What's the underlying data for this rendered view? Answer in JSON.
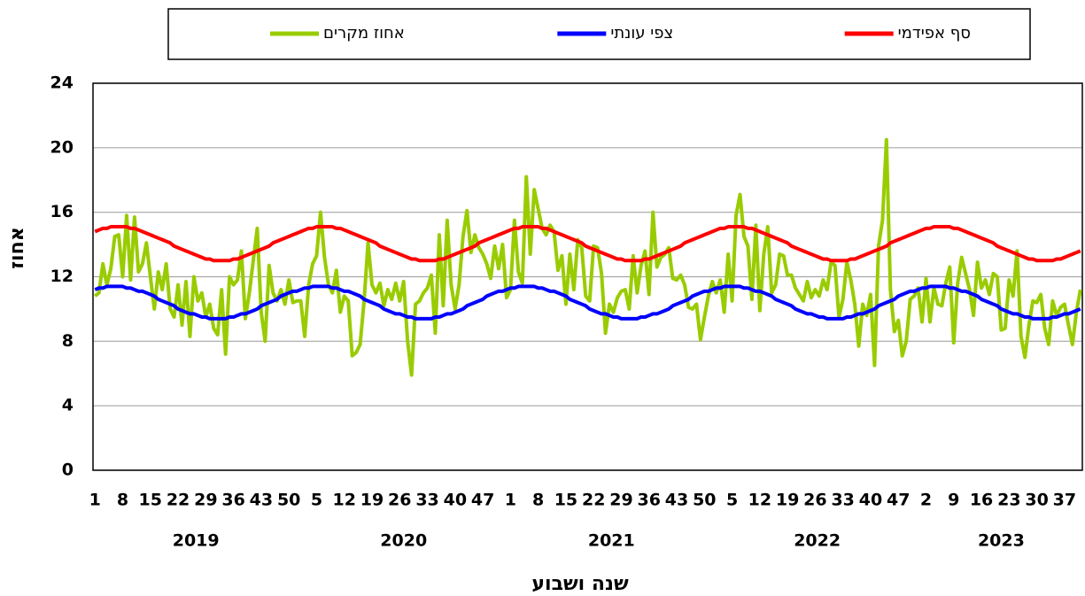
{
  "chart_data": {
    "type": "line",
    "x_label": "שנה ושבוע",
    "y_label": "אחוז",
    "ylim": [
      0,
      24
    ],
    "yticks": [
      0,
      4,
      8,
      12,
      16,
      20,
      24
    ],
    "grid": true,
    "legend": "top",
    "categories": [
      "1",
      null,
      null,
      null,
      null,
      null,
      null,
      "8",
      null,
      null,
      null,
      null,
      null,
      null,
      "15",
      null,
      null,
      null,
      null,
      null,
      null,
      "22",
      null,
      null,
      null,
      null,
      null,
      null,
      "29",
      null,
      null,
      null,
      null,
      null,
      null,
      "36",
      null,
      null,
      null,
      null,
      null,
      null,
      "43",
      null,
      null,
      null,
      null,
      null,
      null,
      "50",
      null,
      null,
      null,
      null,
      null,
      null,
      "5",
      null,
      null,
      null,
      null,
      null,
      null,
      "12",
      null,
      null,
      null,
      null,
      null,
      null,
      "19",
      null,
      null,
      null,
      null,
      null,
      null,
      "26",
      null,
      null,
      null,
      null,
      null,
      null,
      "33",
      null,
      null,
      null,
      null,
      null,
      null,
      "40",
      null,
      null,
      null,
      null,
      null,
      null,
      "47",
      null,
      null,
      null,
      null,
      null,
      null,
      "1",
      null,
      null,
      null,
      null,
      null,
      null,
      "8",
      null,
      null,
      null,
      null,
      null,
      null,
      "15",
      null,
      null,
      null,
      null,
      null,
      null,
      "22",
      null,
      null,
      null,
      null,
      null,
      null,
      "29",
      null,
      null,
      null,
      null,
      null,
      null,
      "36",
      null,
      null,
      null,
      null,
      null,
      null,
      "43",
      null,
      null,
      null,
      null,
      null,
      null,
      "50",
      null,
      null,
      null,
      null,
      null,
      null,
      "5",
      null,
      null,
      null,
      null,
      null,
      null,
      "12",
      null,
      null,
      null,
      null,
      null,
      null,
      "19",
      null,
      null,
      null,
      null,
      null,
      null,
      "26",
      null,
      null,
      null,
      null,
      null,
      null,
      "33",
      null,
      null,
      null,
      null,
      null,
      null,
      "40",
      null,
      null,
      null,
      null,
      null,
      null,
      "47",
      null,
      null,
      null,
      null,
      null,
      null,
      "2",
      null,
      null,
      null,
      null,
      null,
      null,
      "9",
      null,
      null,
      null,
      null,
      null,
      null,
      "16",
      null,
      null,
      null,
      null,
      null,
      null,
      "23",
      null,
      null,
      null,
      null,
      null,
      null,
      "30",
      null,
      null,
      null,
      null,
      null,
      null,
      "37",
      null,
      null,
      null,
      null
    ],
    "year_groups": [
      {
        "label": "2019",
        "weeks": 52
      },
      {
        "label": "2020",
        "weeks": 53
      },
      {
        "label": "2021",
        "weeks": 52
      },
      {
        "label": "2022",
        "weeks": 52
      },
      {
        "label": "2023",
        "weeks": 41
      }
    ],
    "series": [
      {
        "name": "אחוז מקרים",
        "color": "#99cc00",
        "values": [
          10.8,
          11,
          12.8,
          11.5,
          12.5,
          14.5,
          14.6,
          12,
          15.8,
          11.8,
          15.7,
          12.3,
          12.8,
          14.1,
          12,
          10,
          12.3,
          11.2,
          12.8,
          10,
          9.5,
          11.5,
          9,
          11.7,
          8.3,
          12,
          10.5,
          11,
          9.5,
          10.3,
          8.8,
          8.4,
          11.2,
          7.2,
          12,
          11.5,
          11.8,
          13.6,
          9.4,
          11,
          13,
          15,
          9.8,
          8,
          12.7,
          11,
          10.5,
          11.2,
          10.3,
          11.8,
          10.4,
          10.5,
          10.5,
          8.3,
          11.5,
          12.8,
          13.3,
          16,
          13.2,
          11.5,
          11,
          12.4,
          9.8,
          10.8,
          10.5,
          7.1,
          7.3,
          7.8,
          10.5,
          14.1,
          11.5,
          11,
          11.6,
          10.2,
          11.2,
          10.6,
          11.6,
          10.5,
          11.7,
          8,
          5.9,
          10.3,
          10.5,
          11,
          11.3,
          12.1,
          8.5,
          14.6,
          10.2,
          15.5,
          11.5,
          10,
          11.5,
          14.5,
          16.1,
          13.5,
          14.6,
          13.8,
          13.4,
          12.8,
          11.9,
          13.9,
          12.5,
          14,
          10.7,
          11.2,
          15.5,
          12.3,
          11.6,
          18.2,
          13.4,
          17.4,
          16.2,
          15,
          14.6,
          15.2,
          14.8,
          12.4,
          13.3,
          10.3,
          13.4,
          11.2,
          14.3,
          13.8,
          10.8,
          10.5,
          13.9,
          13.8,
          12.2,
          8.5,
          10.3,
          9.8,
          10.7,
          11.1,
          11.2,
          10,
          13.3,
          11,
          12.7,
          13.6,
          10.9,
          16,
          12.6,
          13.2,
          13.4,
          13.8,
          11.9,
          11.8,
          12.1,
          11.5,
          10.1,
          10,
          10.3,
          8.1,
          9.5,
          10.8,
          11.7,
          11,
          11.8,
          9.8,
          13.4,
          10.5,
          15.8,
          17.1,
          14.5,
          13.9,
          10.6,
          15.2,
          9.9,
          13.4,
          15.1,
          11,
          11.5,
          13.4,
          13.3,
          12.1,
          12.1,
          11.3,
          10.9,
          10.5,
          11.7,
          10.7,
          11.2,
          10.8,
          11.8,
          11.2,
          12.9,
          12.7,
          9.5,
          10.6,
          12.9,
          11.8,
          10.3,
          7.7,
          10.3,
          9.6,
          10.9,
          6.5,
          13.9,
          15.5,
          20.5,
          11.2,
          8.6,
          9.3,
          7.1,
          8,
          10.6,
          10.8,
          11.3,
          9.2,
          11.9,
          9.2,
          11.3,
          10.3,
          10.2,
          11.6,
          12.6,
          7.9,
          11.6,
          13.2,
          12.2,
          11.2,
          9.6,
          12.9,
          11.3,
          11.8,
          10.9,
          12.2,
          12,
          8.7,
          8.8,
          11.8,
          10.8,
          13.6,
          8.3,
          7,
          9,
          10.5,
          10.4,
          10.9,
          8.8,
          7.8,
          10.5,
          9.6,
          10.1,
          10.3,
          9,
          7.8,
          9.8,
          11.2
        ]
      },
      {
        "name": "צפי עונתי",
        "color": "#0000ff",
        "values": [
          11.2,
          11.3,
          11.3,
          11.4,
          11.4,
          11.4,
          11.4,
          11.4,
          11.3,
          11.3,
          11.2,
          11.1,
          11.1,
          11.0,
          10.9,
          10.8,
          10.6,
          10.5,
          10.4,
          10.3,
          10.2,
          10.0,
          9.9,
          9.8,
          9.7,
          9.7,
          9.6,
          9.5,
          9.5,
          9.4,
          9.4,
          9.4,
          9.4,
          9.4,
          9.5,
          9.5,
          9.6,
          9.7,
          9.7,
          9.8,
          9.9,
          10.0,
          10.2,
          10.3,
          10.4,
          10.5,
          10.6,
          10.8,
          10.9,
          11.0,
          11.1,
          11.1,
          11.2,
          11.3,
          11.3,
          11.4,
          11.4,
          11.4,
          11.4,
          11.4,
          11.3,
          11.3,
          11.2,
          11.1,
          11.1,
          11.0,
          10.9,
          10.8,
          10.6,
          10.5,
          10.4,
          10.3,
          10.2,
          10.0,
          9.9,
          9.8,
          9.7,
          9.7,
          9.6,
          9.5,
          9.5,
          9.4,
          9.4,
          9.4,
          9.4,
          9.4,
          9.5,
          9.5,
          9.6,
          9.7,
          9.7,
          9.8,
          9.9,
          10.0,
          10.2,
          10.3,
          10.4,
          10.5,
          10.6,
          10.8,
          10.9,
          11.0,
          11.1,
          11.1,
          11.2,
          11.3,
          11.3,
          11.4,
          11.4,
          11.4,
          11.4,
          11.4,
          11.3,
          11.3,
          11.2,
          11.1,
          11.1,
          11.0,
          10.9,
          10.8,
          10.6,
          10.5,
          10.4,
          10.3,
          10.2,
          10.0,
          9.9,
          9.8,
          9.7,
          9.7,
          9.6,
          9.5,
          9.5,
          9.4,
          9.4,
          9.4,
          9.4,
          9.4,
          9.5,
          9.5,
          9.6,
          9.7,
          9.7,
          9.8,
          9.9,
          10.0,
          10.2,
          10.3,
          10.4,
          10.5,
          10.6,
          10.8,
          10.9,
          11.0,
          11.1,
          11.1,
          11.2,
          11.3,
          11.3,
          11.4,
          11.4,
          11.4,
          11.4,
          11.4,
          11.3,
          11.3,
          11.2,
          11.1,
          11.1,
          11.0,
          10.9,
          10.8,
          10.6,
          10.5,
          10.4,
          10.3,
          10.2,
          10.0,
          9.9,
          9.8,
          9.7,
          9.7,
          9.6,
          9.5,
          9.5,
          9.4,
          9.4,
          9.4,
          9.4,
          9.4,
          9.5,
          9.5,
          9.6,
          9.7,
          9.7,
          9.8,
          9.9,
          10.0,
          10.2,
          10.3,
          10.4,
          10.5,
          10.6,
          10.8,
          10.9,
          11.0,
          11.1,
          11.1,
          11.2,
          11.3,
          11.3,
          11.4,
          11.4,
          11.4,
          11.4,
          11.4,
          11.3,
          11.3,
          11.2,
          11.1,
          11.1,
          11.0,
          10.9,
          10.8,
          10.6,
          10.5,
          10.4,
          10.3,
          10.2,
          10.0,
          9.9,
          9.8,
          9.7,
          9.7,
          9.6,
          9.5,
          9.5,
          9.4,
          9.4,
          9.4,
          9.4,
          9.4,
          9.5,
          9.5,
          9.6,
          9.7,
          9.7,
          9.8,
          9.9,
          10.0
        ]
      },
      {
        "name": "סף אפידמי",
        "color": "#ff0000",
        "values": [
          14.8,
          14.9,
          15.0,
          15.0,
          15.1,
          15.1,
          15.1,
          15.1,
          15.1,
          15.0,
          15.0,
          14.9,
          14.8,
          14.7,
          14.6,
          14.5,
          14.4,
          14.3,
          14.2,
          14.1,
          13.9,
          13.8,
          13.7,
          13.6,
          13.5,
          13.4,
          13.3,
          13.2,
          13.1,
          13.1,
          13.0,
          13.0,
          13.0,
          13.0,
          13.0,
          13.1,
          13.1,
          13.2,
          13.3,
          13.4,
          13.5,
          13.6,
          13.7,
          13.8,
          13.9,
          14.1,
          14.2,
          14.3,
          14.4,
          14.5,
          14.6,
          14.7,
          14.8,
          14.9,
          15.0,
          15.0,
          15.1,
          15.1,
          15.1,
          15.1,
          15.1,
          15.0,
          15.0,
          14.9,
          14.8,
          14.7,
          14.6,
          14.5,
          14.4,
          14.3,
          14.2,
          14.1,
          13.9,
          13.8,
          13.7,
          13.6,
          13.5,
          13.4,
          13.3,
          13.2,
          13.1,
          13.1,
          13.0,
          13.0,
          13.0,
          13.0,
          13.0,
          13.1,
          13.1,
          13.2,
          13.3,
          13.4,
          13.5,
          13.6,
          13.7,
          13.8,
          13.9,
          14.1,
          14.2,
          14.3,
          14.4,
          14.5,
          14.6,
          14.7,
          14.8,
          14.9,
          15.0,
          15.0,
          15.1,
          15.1,
          15.1,
          15.1,
          15.1,
          15.0,
          15.0,
          14.9,
          14.8,
          14.7,
          14.6,
          14.5,
          14.4,
          14.3,
          14.2,
          14.1,
          13.9,
          13.8,
          13.7,
          13.6,
          13.5,
          13.4,
          13.3,
          13.2,
          13.1,
          13.1,
          13.0,
          13.0,
          13.0,
          13.0,
          13.0,
          13.1,
          13.1,
          13.2,
          13.3,
          13.4,
          13.5,
          13.6,
          13.7,
          13.8,
          13.9,
          14.1,
          14.2,
          14.3,
          14.4,
          14.5,
          14.6,
          14.7,
          14.8,
          14.9,
          15.0,
          15.0,
          15.1,
          15.1,
          15.1,
          15.1,
          15.1,
          15.0,
          15.0,
          14.9,
          14.8,
          14.7,
          14.6,
          14.5,
          14.4,
          14.3,
          14.2,
          14.1,
          13.9,
          13.8,
          13.7,
          13.6,
          13.5,
          13.4,
          13.3,
          13.2,
          13.1,
          13.1,
          13.0,
          13.0,
          13.0,
          13.0,
          13.0,
          13.1,
          13.1,
          13.2,
          13.3,
          13.4,
          13.5,
          13.6,
          13.7,
          13.8,
          13.9,
          14.1,
          14.2,
          14.3,
          14.4,
          14.5,
          14.6,
          14.7,
          14.8,
          14.9,
          15.0,
          15.0,
          15.1,
          15.1,
          15.1,
          15.1,
          15.1,
          15.0,
          15.0,
          14.9,
          14.8,
          14.7,
          14.6,
          14.5,
          14.4,
          14.3,
          14.2,
          14.1,
          13.9,
          13.8,
          13.7,
          13.6,
          13.5,
          13.4,
          13.3,
          13.2,
          13.1,
          13.1,
          13.0,
          13.0,
          13.0,
          13.0,
          13.0,
          13.1,
          13.1,
          13.2,
          13.3,
          13.4,
          13.5,
          13.6
        ]
      }
    ]
  }
}
